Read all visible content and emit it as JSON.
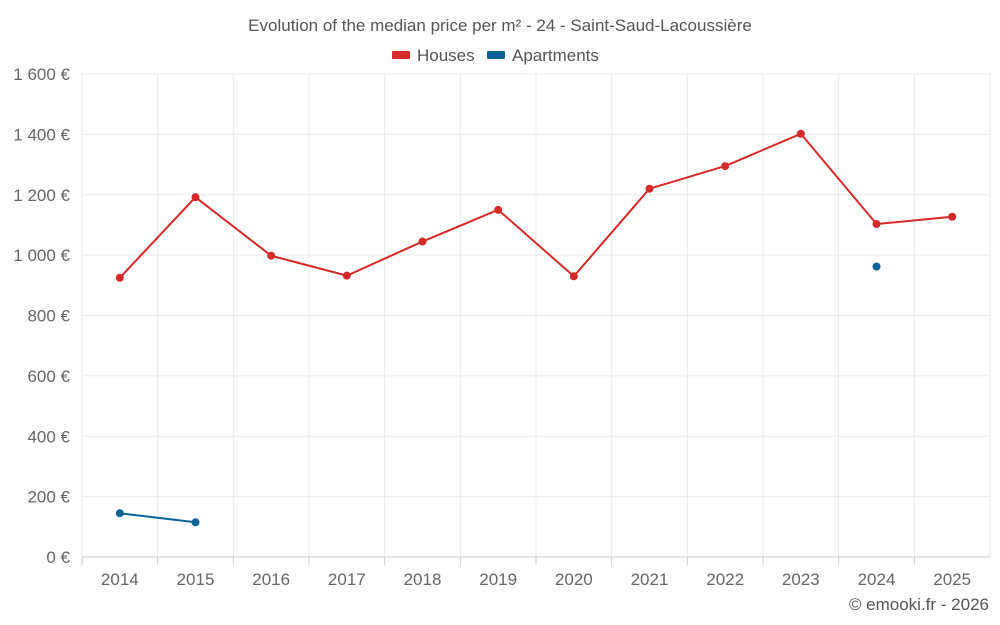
{
  "chart_data": {
    "type": "line",
    "title": "Evolution of the median price per m² - 24 - Saint-Saud-Lacoussière",
    "categories": [
      "2014",
      "2015",
      "2016",
      "2017",
      "2018",
      "2019",
      "2020",
      "2021",
      "2022",
      "2023",
      "2024",
      "2025"
    ],
    "y_ticks": [
      {
        "value": 0,
        "label": "0 €"
      },
      {
        "value": 200,
        "label": "200 €"
      },
      {
        "value": 400,
        "label": "400 €"
      },
      {
        "value": 600,
        "label": "600 €"
      },
      {
        "value": 800,
        "label": "800 €"
      },
      {
        "value": 1000,
        "label": "1 000 €"
      },
      {
        "value": 1200,
        "label": "1 200 €"
      },
      {
        "value": 1400,
        "label": "1 400 €"
      },
      {
        "value": 1600,
        "label": "1 600 €"
      }
    ],
    "ylim": [
      0,
      1600
    ],
    "grid": true,
    "legend_position": "top-center",
    "series": [
      {
        "name": "Houses",
        "color": "#d42a2a",
        "values": [
          925,
          1192,
          998,
          932,
          1045,
          1150,
          930,
          1220,
          1295,
          1402,
          1103,
          1127
        ]
      },
      {
        "name": "Apartments",
        "color": "#0b6299",
        "values": [
          145,
          115,
          null,
          null,
          null,
          null,
          null,
          null,
          null,
          null,
          962,
          null
        ]
      }
    ],
    "credit": "© emooki.fr - 2026"
  }
}
